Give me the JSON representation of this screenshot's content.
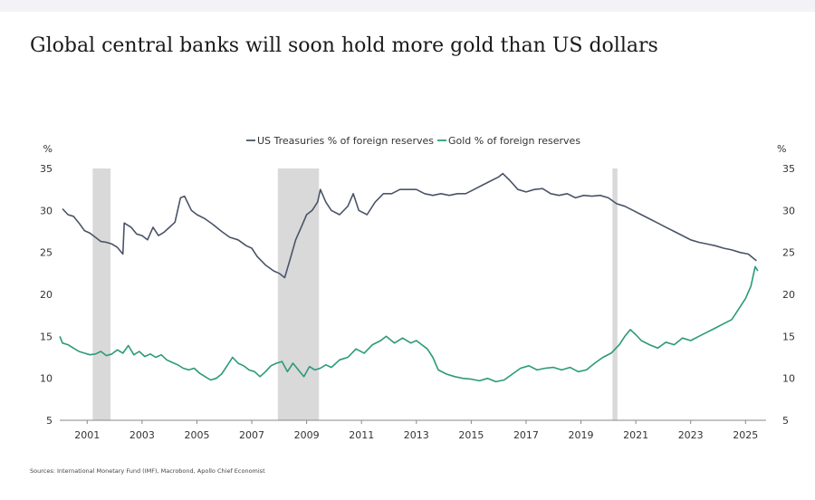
{
  "title": "Global central banks will soon hold more gold than US dollars",
  "source": "Sources: International Monetary Fund (IMF), Macrobond, Apollo Chief Economist",
  "chart_data": {
    "type": "line",
    "title": "Global central banks will soon hold more gold than US dollars",
    "xlabel": "",
    "ylabel": "%",
    "ylabel_right": "%",
    "ylim": [
      5,
      35
    ],
    "y_ticks": [
      5,
      10,
      15,
      20,
      25,
      30,
      35
    ],
    "xlim": [
      2000.0,
      2025.75
    ],
    "x_ticks": [
      "2001",
      "2003",
      "2005",
      "2007",
      "2009",
      "2011",
      "2013",
      "2015",
      "2017",
      "2019",
      "2021",
      "2023",
      "2025"
    ],
    "x_tick_values": [
      2001,
      2003,
      2005,
      2007,
      2009,
      2011,
      2013,
      2015,
      2017,
      2019,
      2021,
      2023,
      2025
    ],
    "recessions": [
      [
        2001.2,
        2001.85
      ],
      [
        2007.95,
        2009.45
      ],
      [
        2020.15,
        2020.33
      ]
    ],
    "colors": {
      "treasuries": "#4a5468",
      "gold": "#2a9a7a",
      "recession": "#d9d9d9"
    },
    "series": [
      {
        "name": "US Treasuries % of foreign reserves",
        "x": [
          2000.1,
          2000.3,
          2000.5,
          2000.7,
          2000.9,
          2001.1,
          2001.3,
          2001.5,
          2001.7,
          2001.9,
          2002.1,
          2002.3,
          2002.35,
          2002.6,
          2002.8,
          2003.0,
          2003.2,
          2003.4,
          2003.6,
          2003.8,
          2004.0,
          2004.2,
          2004.4,
          2004.55,
          2004.8,
          2005.0,
          2005.3,
          2005.6,
          2005.9,
          2006.2,
          2006.5,
          2006.8,
          2007.0,
          2007.2,
          2007.5,
          2007.8,
          2008.0,
          2008.2,
          2008.4,
          2008.6,
          2008.8,
          2009.0,
          2009.2,
          2009.4,
          2009.5,
          2009.7,
          2009.9,
          2010.2,
          2010.5,
          2010.7,
          2010.9,
          2011.2,
          2011.5,
          2011.8,
          2012.1,
          2012.4,
          2012.7,
          2013.0,
          2013.3,
          2013.6,
          2013.9,
          2014.2,
          2014.5,
          2014.8,
          2015.1,
          2015.4,
          2015.7,
          2016.0,
          2016.15,
          2016.4,
          2016.7,
          2017.0,
          2017.3,
          2017.6,
          2017.9,
          2018.2,
          2018.5,
          2018.8,
          2019.1,
          2019.4,
          2019.7,
          2020.0,
          2020.3,
          2020.6,
          2020.9,
          2021.2,
          2021.5,
          2021.8,
          2022.1,
          2022.4,
          2022.7,
          2023.0,
          2023.3,
          2023.6,
          2023.9,
          2024.2,
          2024.5,
          2024.8,
          2025.1,
          2025.4
        ],
        "values": [
          30.2,
          29.5,
          29.3,
          28.5,
          27.6,
          27.3,
          26.8,
          26.3,
          26.2,
          26.0,
          25.6,
          24.8,
          28.5,
          28.0,
          27.2,
          27.0,
          26.5,
          28.0,
          27.0,
          27.4,
          28.0,
          28.6,
          31.5,
          31.7,
          30.0,
          29.5,
          29.0,
          28.3,
          27.5,
          26.8,
          26.5,
          25.8,
          25.5,
          24.5,
          23.5,
          22.8,
          22.5,
          22.0,
          24.2,
          26.5,
          28.0,
          29.5,
          30.0,
          31.0,
          32.5,
          31.0,
          30.0,
          29.5,
          30.5,
          32.0,
          30.0,
          29.5,
          31.0,
          32.0,
          32.0,
          32.5,
          32.5,
          32.5,
          32.0,
          31.8,
          32.0,
          31.8,
          32.0,
          32.0,
          32.5,
          33.0,
          33.5,
          34.0,
          34.4,
          33.6,
          32.5,
          32.2,
          32.5,
          32.6,
          32.0,
          31.8,
          32.0,
          31.5,
          31.8,
          31.7,
          31.8,
          31.5,
          30.8,
          30.5,
          30.0,
          29.5,
          29.0,
          28.5,
          28.0,
          27.5,
          27.0,
          26.5,
          26.2,
          26.0,
          25.8,
          25.5,
          25.3,
          25.0,
          24.8,
          24.0
        ]
      },
      {
        "name": "Gold % of foreign reserves",
        "x": [
          2000.0,
          2000.1,
          2000.3,
          2000.5,
          2000.7,
          2000.9,
          2001.1,
          2001.3,
          2001.5,
          2001.7,
          2001.9,
          2002.1,
          2002.3,
          2002.5,
          2002.7,
          2002.9,
          2003.1,
          2003.3,
          2003.5,
          2003.7,
          2003.9,
          2004.1,
          2004.3,
          2004.5,
          2004.7,
          2004.9,
          2005.1,
          2005.3,
          2005.5,
          2005.7,
          2005.9,
          2006.1,
          2006.3,
          2006.5,
          2006.7,
          2006.9,
          2007.1,
          2007.3,
          2007.5,
          2007.7,
          2007.9,
          2008.1,
          2008.3,
          2008.5,
          2008.7,
          2008.9,
          2009.1,
          2009.3,
          2009.5,
          2009.7,
          2009.9,
          2010.2,
          2010.5,
          2010.8,
          2011.1,
          2011.4,
          2011.7,
          2011.9,
          2012.2,
          2012.5,
          2012.8,
          2013.0,
          2013.2,
          2013.4,
          2013.6,
          2013.8,
          2014.1,
          2014.4,
          2014.7,
          2015.0,
          2015.3,
          2015.6,
          2015.9,
          2016.2,
          2016.5,
          2016.8,
          2017.1,
          2017.4,
          2017.7,
          2018.0,
          2018.3,
          2018.6,
          2018.9,
          2019.2,
          2019.5,
          2019.8,
          2020.1,
          2020.4,
          2020.6,
          2020.8,
          2021.0,
          2021.2,
          2021.5,
          2021.8,
          2022.1,
          2022.4,
          2022.7,
          2023.0,
          2023.3,
          2023.6,
          2023.9,
          2024.2,
          2024.5,
          2024.8,
          2025.0,
          2025.2,
          2025.35,
          2025.45
        ],
        "values": [
          15.0,
          14.2,
          14.0,
          13.6,
          13.2,
          13.0,
          12.8,
          12.9,
          13.2,
          12.7,
          12.9,
          13.4,
          13.0,
          13.9,
          12.8,
          13.2,
          12.6,
          12.9,
          12.5,
          12.8,
          12.2,
          11.9,
          11.6,
          11.2,
          11.0,
          11.2,
          10.6,
          10.2,
          9.8,
          10.0,
          10.5,
          11.5,
          12.5,
          11.8,
          11.5,
          11.0,
          10.8,
          10.2,
          10.8,
          11.5,
          11.8,
          12.0,
          10.8,
          11.8,
          11.0,
          10.2,
          11.4,
          11.0,
          11.2,
          11.6,
          11.3,
          12.2,
          12.5,
          13.5,
          13.0,
          14.0,
          14.5,
          15.0,
          14.2,
          14.8,
          14.2,
          14.5,
          14.0,
          13.5,
          12.5,
          11.0,
          10.5,
          10.2,
          10.0,
          9.9,
          9.7,
          10.0,
          9.6,
          9.8,
          10.5,
          11.2,
          11.5,
          11.0,
          11.2,
          11.3,
          11.0,
          11.3,
          10.8,
          11.0,
          11.8,
          12.5,
          13.0,
          14.0,
          15.0,
          15.8,
          15.2,
          14.5,
          14.0,
          13.6,
          14.3,
          14.0,
          14.8,
          14.5,
          15.0,
          15.5,
          16.0,
          16.5,
          17.0,
          18.5,
          19.5,
          21.0,
          23.3,
          22.8
        ]
      }
    ]
  }
}
